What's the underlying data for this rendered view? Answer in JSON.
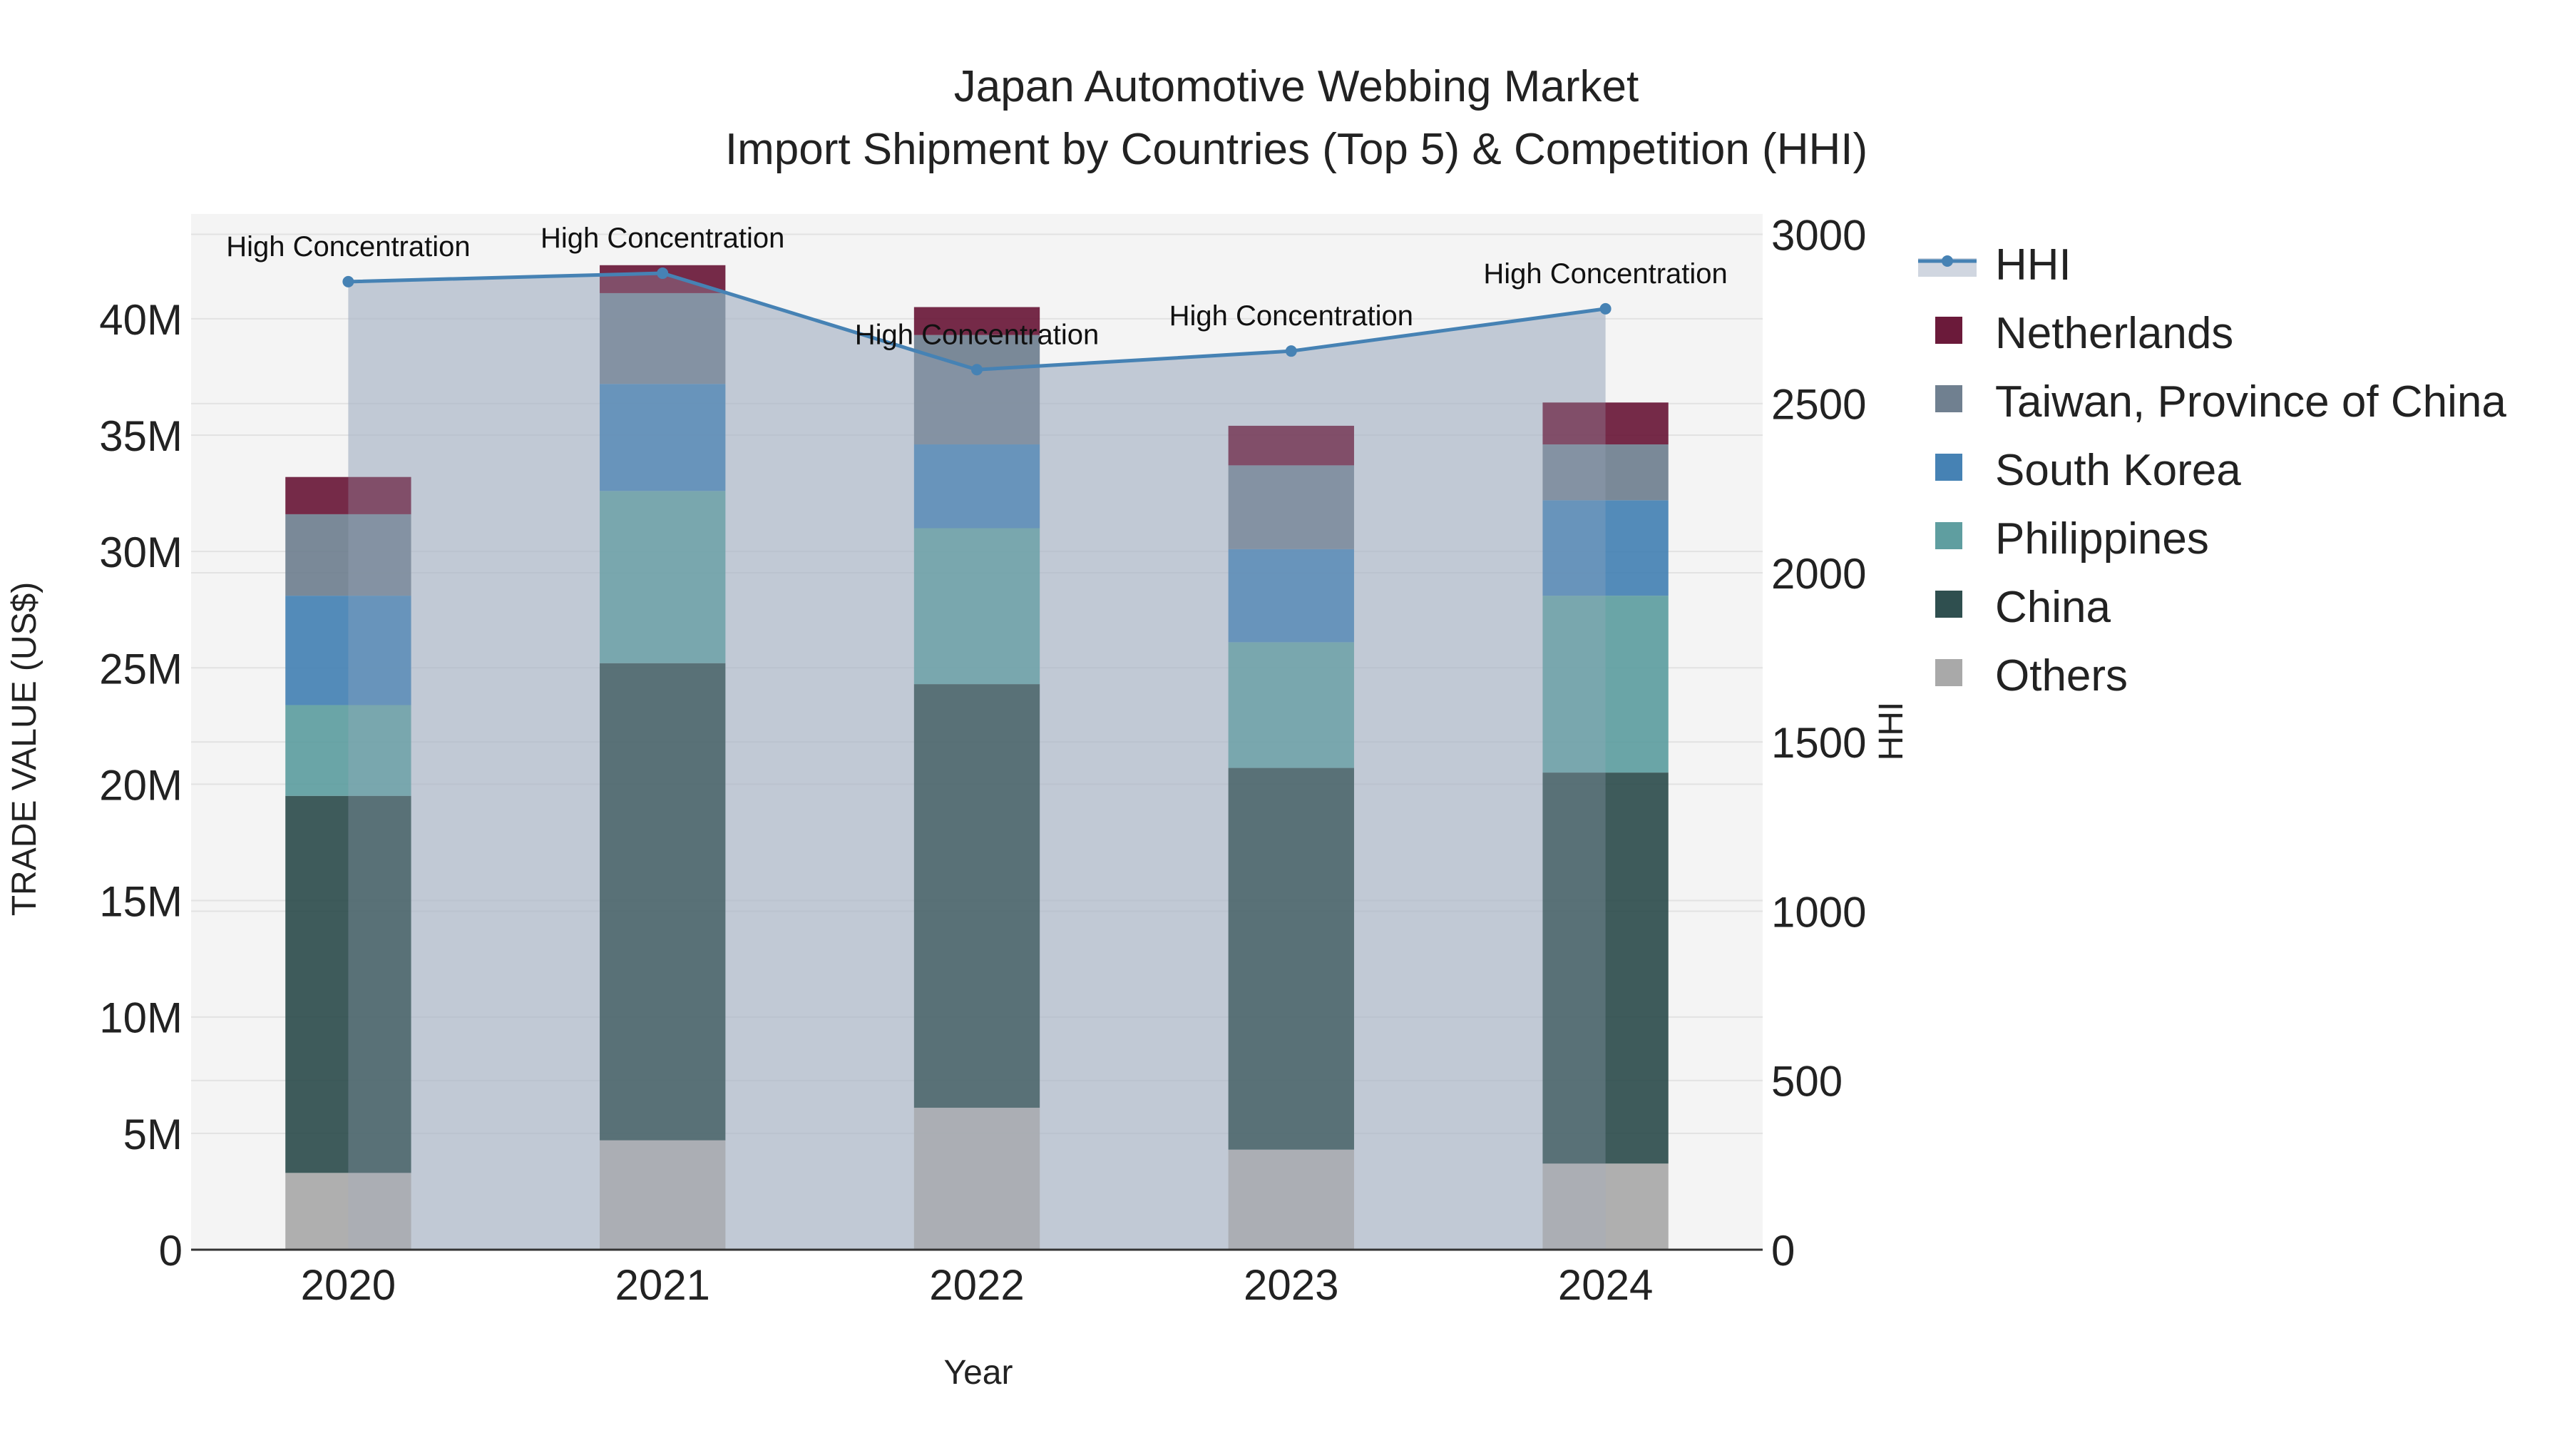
{
  "chart_data": {
    "type": "bar",
    "title_line1": "Japan Automotive Webbing Market",
    "title_line2": "Import Shipment by Countries (Top 5) & Competition (HHI)",
    "xlabel": "Year",
    "ylabel": "TRADE VALUE (US$)",
    "y2label": "HHI",
    "categories": [
      "2020",
      "2021",
      "2022",
      "2023",
      "2024"
    ],
    "ylim": [
      0,
      44500000
    ],
    "y_ticks": [
      {
        "value": 0,
        "label": "0"
      },
      {
        "value": 5000000,
        "label": "5M"
      },
      {
        "value": 10000000,
        "label": "10M"
      },
      {
        "value": 15000000,
        "label": "15M"
      },
      {
        "value": 20000000,
        "label": "20M"
      },
      {
        "value": 25000000,
        "label": "25M"
      },
      {
        "value": 30000000,
        "label": "30M"
      },
      {
        "value": 35000000,
        "label": "35M"
      },
      {
        "value": 40000000,
        "label": "40M"
      }
    ],
    "y2lim": [
      0,
      3060
    ],
    "y2_ticks": [
      {
        "value": 0,
        "label": "0"
      },
      {
        "value": 500,
        "label": "500"
      },
      {
        "value": 1000,
        "label": "1000"
      },
      {
        "value": 1500,
        "label": "1500"
      },
      {
        "value": 2000,
        "label": "2000"
      },
      {
        "value": 2500,
        "label": "2500"
      },
      {
        "value": 3000,
        "label": "3000"
      }
    ],
    "series": [
      {
        "name": "Others",
        "color": "#A9A9A9",
        "values": [
          3300000,
          4700000,
          6100000,
          4300000,
          3700000
        ]
      },
      {
        "name": "China",
        "color": "#2F4F4F",
        "values": [
          16200000,
          20500000,
          18200000,
          16400000,
          16800000
        ]
      },
      {
        "name": "Philippines",
        "color": "#5F9EA0",
        "values": [
          3900000,
          7400000,
          6700000,
          5400000,
          7600000
        ]
      },
      {
        "name": "South Korea",
        "color": "#4682B4",
        "values": [
          4700000,
          4600000,
          3600000,
          4000000,
          4100000
        ]
      },
      {
        "name": "Taiwan, Province of China",
        "color": "#708090",
        "values": [
          3500000,
          3900000,
          4700000,
          3600000,
          2400000
        ]
      },
      {
        "name": "Netherlands",
        "color": "#6B1A3A",
        "values": [
          1600000,
          1200000,
          1200000,
          1700000,
          1800000
        ]
      }
    ],
    "hhi": {
      "name": "HHI",
      "color": "#4682B4",
      "values": [
        2860,
        2885,
        2600,
        2655,
        2780
      ],
      "annotations": [
        "High Concentration",
        "High Concentration",
        "High Concentration",
        "High Concentration",
        "High Concentration"
      ]
    },
    "legend_order": [
      "HHI",
      "Netherlands",
      "Taiwan, Province of China",
      "South Korea",
      "Philippines",
      "China",
      "Others"
    ],
    "legend_position": "right",
    "grid": true
  }
}
